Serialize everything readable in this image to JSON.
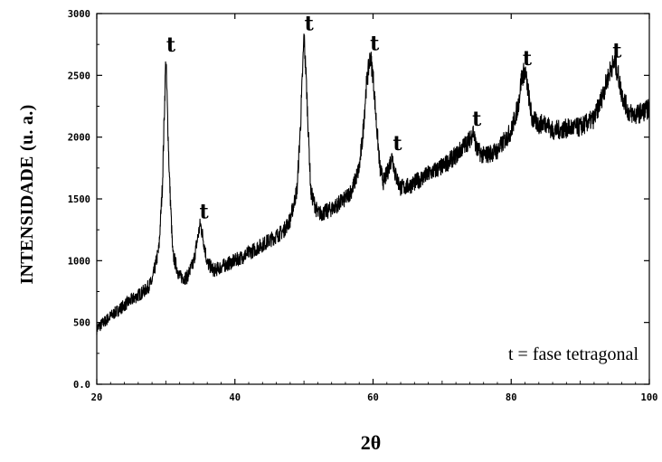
{
  "chart_data": {
    "type": "line",
    "xlabel": "2θ",
    "ylabel": "INTENSIDADE (u. a.)",
    "xlim": [
      20,
      100
    ],
    "ylim": [
      0,
      3000
    ],
    "x_ticks": [
      "20",
      "40",
      "60",
      "80",
      "100"
    ],
    "y_ticks": [
      "0.0",
      "500",
      "1000",
      "1500",
      "2000",
      "2500",
      "3000"
    ],
    "grid": false,
    "legend_text": "t = fase tetragonal",
    "legend_position": "bottom-right",
    "line_color": "#000000",
    "series": [
      {
        "x": [
          20,
          22,
          24,
          26,
          27,
          28,
          29,
          29.5,
          30,
          30.5,
          31,
          32,
          33,
          34,
          34.5,
          35,
          35.5,
          36,
          37,
          38,
          40,
          42,
          44,
          46,
          47,
          48,
          49,
          49.5,
          50,
          50.3,
          50.7,
          51,
          52,
          53,
          54,
          56,
          57,
          58,
          58.5,
          59,
          59.6,
          60,
          60.5,
          61,
          61.5,
          62,
          62.5,
          62.8,
          63.2,
          64,
          65,
          66,
          68,
          70,
          72,
          73,
          74,
          74.5,
          75,
          76,
          78,
          80,
          81,
          81.5,
          82,
          82.5,
          83,
          84,
          85,
          86,
          88,
          90,
          92,
          93,
          94,
          94.5,
          95,
          95.5,
          96,
          97,
          98,
          100
        ],
        "y": [
          450,
          550,
          640,
          720,
          760,
          830,
          1100,
          1600,
          2650,
          1700,
          1050,
          870,
          860,
          980,
          1150,
          1300,
          1150,
          980,
          920,
          950,
          1000,
          1060,
          1130,
          1200,
          1240,
          1330,
          1580,
          2100,
          2820,
          2500,
          1950,
          1550,
          1380,
          1390,
          1420,
          1500,
          1580,
          1750,
          2000,
          2400,
          2660,
          2500,
          2100,
          1750,
          1640,
          1700,
          1800,
          1850,
          1700,
          1590,
          1600,
          1630,
          1700,
          1760,
          1850,
          1920,
          1980,
          2050,
          1900,
          1850,
          1890,
          2050,
          2250,
          2480,
          2540,
          2350,
          2150,
          2100,
          2120,
          2050,
          2070,
          2080,
          2150,
          2300,
          2480,
          2570,
          2600,
          2500,
          2350,
          2200,
          2180,
          2230
        ]
      }
    ],
    "annotations": [
      {
        "text": "t",
        "x": 30.2,
        "y": 2650
      },
      {
        "text": "t",
        "x": 35,
        "y": 1300
      },
      {
        "text": "t",
        "x": 50.2,
        "y": 2820
      },
      {
        "text": "t",
        "x": 59.7,
        "y": 2660
      },
      {
        "text": "t",
        "x": 63,
        "y": 1850
      },
      {
        "text": "t",
        "x": 74.5,
        "y": 2050
      },
      {
        "text": "t",
        "x": 81.8,
        "y": 2540
      },
      {
        "text": "t",
        "x": 94.8,
        "y": 2600
      }
    ]
  }
}
